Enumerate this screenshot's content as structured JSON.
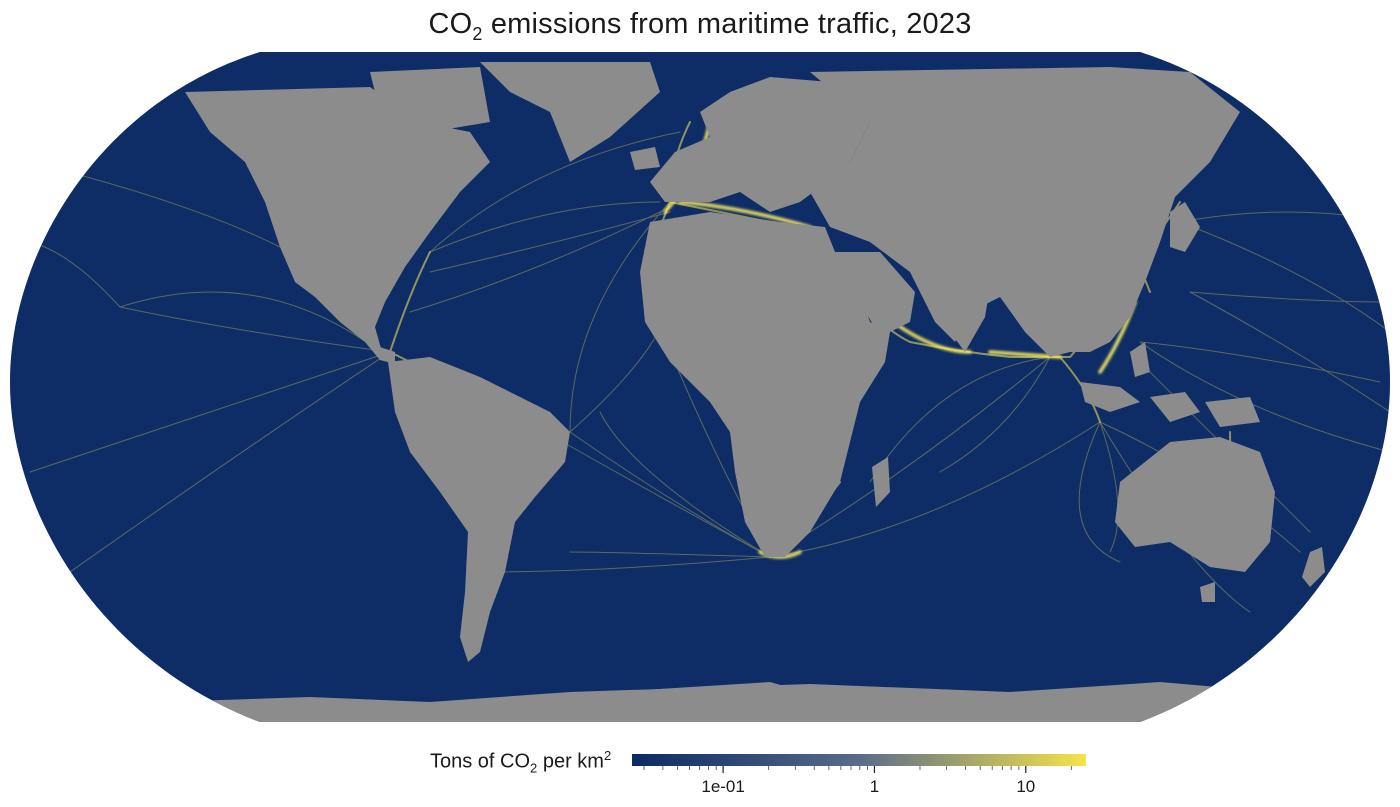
{
  "map": {
    "title_prefix": "CO",
    "title_subscript": "2",
    "title_suffix": " emissions from maritime traffic, 2023",
    "projection": "Robinson",
    "colors": {
      "ocean_low": "#0c2a63",
      "ocean_mid": "#5a6b8a",
      "route_mid": "#b8ab6a",
      "route_high": "#f5e44a",
      "land": "#8c8c8c"
    }
  },
  "legend": {
    "label_prefix": "Tons of CO",
    "label_subscript": "2",
    "label_middle": " per km",
    "label_superscript": "2",
    "scale": "log",
    "ticks": [
      {
        "value": 0.1,
        "label": "1e-01"
      },
      {
        "value": 1,
        "label": "1"
      },
      {
        "value": 10,
        "label": "10"
      }
    ]
  }
}
